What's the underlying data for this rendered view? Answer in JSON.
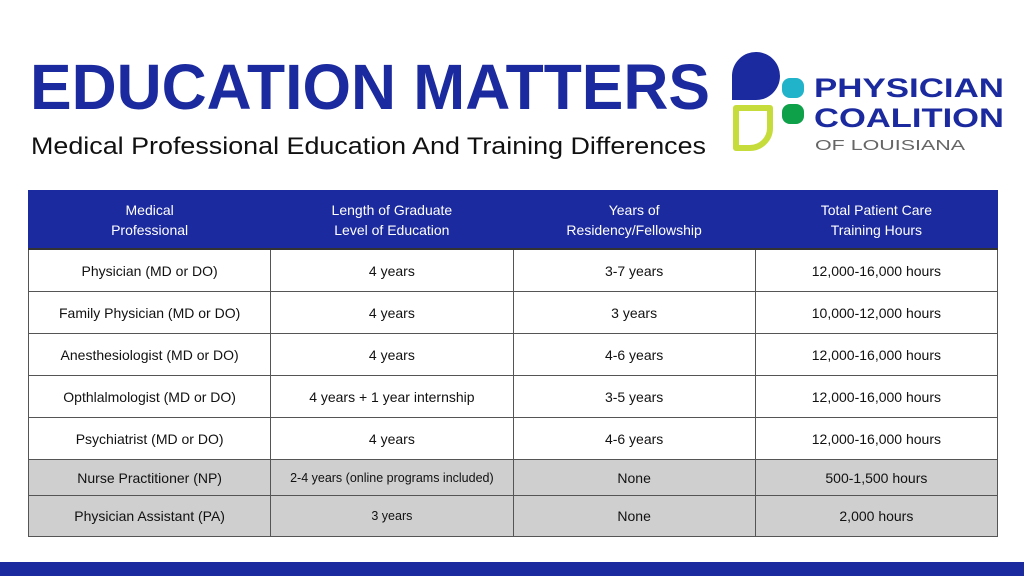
{
  "header": {
    "title": "EDUCATION MATTERS",
    "subtitle": "Medical Professional Education And Training Differences"
  },
  "logo": {
    "lines": [
      "PHYSICIAN",
      "COALITION",
      "OF LOUISIANA"
    ]
  },
  "table": {
    "columns": [
      [
        "Medical",
        "Professional"
      ],
      [
        "Length of Graduate",
        "Level of Education"
      ],
      [
        "Years of",
        "Residency/Fellowship"
      ],
      [
        "Total Patient Care",
        "Training Hours"
      ]
    ],
    "rows": [
      [
        "Physician (MD or DO)",
        "4 years",
        "3-7 years",
        "12,000-16,000 hours"
      ],
      [
        "Family Physician (MD or DO)",
        "4 years",
        "3 years",
        "10,000-12,000 hours"
      ],
      [
        "Anesthesiologist (MD or DO)",
        "4 years",
        "4-6 years",
        "12,000-16,000 hours"
      ],
      [
        "Opthlalmologist (MD or DO)",
        "4 years + 1 year internship",
        "3-5 years",
        "12,000-16,000 hours"
      ],
      [
        "Psychiatrist (MD or DO)",
        "4 years",
        "4-6 years",
        "12,000-16,000 hours"
      ],
      [
        "Nurse Practitioner (NP)",
        "2-4 years (online programs included)",
        "None",
        "500-1,500 hours"
      ],
      [
        "Physician Assistant (PA)",
        "3 years",
        "None",
        "2,000 hours"
      ]
    ]
  }
}
